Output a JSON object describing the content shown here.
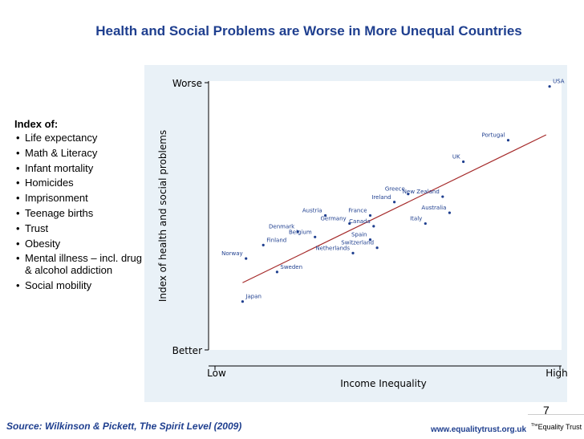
{
  "slide": {
    "title": "Health and Social Problems are Worse in More Unequal Countries",
    "index_heading": "Index of:",
    "index_items": [
      "Life expectancy",
      "Math & Literacy",
      "Infant mortality",
      "Homicides",
      "Imprisonment",
      "Teenage births",
      "Trust",
      "Obesity",
      "Mental illness – incl. drug & alcohol addiction",
      "Social mobility"
    ],
    "source": "Source: Wilkinson & Pickett, The Spirit Level (2009)",
    "url": "www.equalitytrust.org.uk",
    "page_number": "7",
    "logo_prefix": "The",
    "logo_text": "Equality Trust"
  },
  "colors": {
    "title": "#1f3f8f",
    "panel": "#e9f1f7",
    "points": "#1f3f8f",
    "trend": "#a52a2a"
  },
  "chart_data": {
    "type": "scatter",
    "xlabel": "Income Inequality",
    "ylabel": "Index of health and social problems",
    "x_ticks": [
      "Low",
      "High"
    ],
    "y_ticks": [
      "Worse",
      "Better"
    ],
    "xlim": [
      0,
      100
    ],
    "ylim": [
      0,
      100
    ],
    "grid": false,
    "points": [
      {
        "label": "USA",
        "x": 97,
        "y": 98
      },
      {
        "label": "Portugal",
        "x": 85,
        "y": 78
      },
      {
        "label": "UK",
        "x": 72,
        "y": 70
      },
      {
        "label": "New Zealand",
        "x": 66,
        "y": 57
      },
      {
        "label": "Greece",
        "x": 56,
        "y": 58
      },
      {
        "label": "Ireland",
        "x": 52,
        "y": 55
      },
      {
        "label": "Australia",
        "x": 68,
        "y": 51
      },
      {
        "label": "Italy",
        "x": 61,
        "y": 47
      },
      {
        "label": "France",
        "x": 45,
        "y": 50
      },
      {
        "label": "Canada",
        "x": 46,
        "y": 46
      },
      {
        "label": "Austria",
        "x": 32,
        "y": 50
      },
      {
        "label": "Germany",
        "x": 39,
        "y": 47
      },
      {
        "label": "Denmark",
        "x": 24,
        "y": 44
      },
      {
        "label": "Belgium",
        "x": 29,
        "y": 42
      },
      {
        "label": "Spain",
        "x": 45,
        "y": 41
      },
      {
        "label": "Switzerland",
        "x": 47,
        "y": 38
      },
      {
        "label": "Netherlands",
        "x": 40,
        "y": 36
      },
      {
        "label": "Finland",
        "x": 14,
        "y": 39
      },
      {
        "label": "Norway",
        "x": 9,
        "y": 34
      },
      {
        "label": "Sweden",
        "x": 18,
        "y": 29
      },
      {
        "label": "Japan",
        "x": 8,
        "y": 18
      }
    ],
    "trend_line": {
      "x": [
        8,
        96
      ],
      "y": [
        25,
        80
      ]
    }
  }
}
